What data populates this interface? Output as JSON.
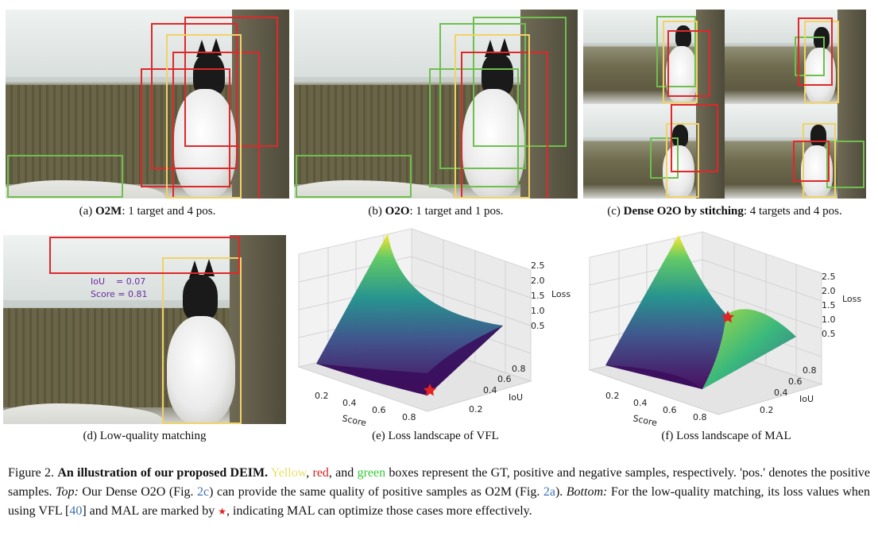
{
  "subfigures": {
    "a": {
      "prefix": "(a) ",
      "bold": "O2M",
      "rest": ": 1 target and 4 pos."
    },
    "b": {
      "prefix": "(b) ",
      "bold": "O2O",
      "rest": ": 1 target and 1 pos."
    },
    "c": {
      "prefix": "(c) ",
      "bold": "Dense O2O by stitching",
      "rest": ": 4 targets and 4 pos."
    },
    "d": {
      "text": "(d) Low-quality matching"
    },
    "e": {
      "text": "(e) Loss landscape of VFL"
    },
    "f": {
      "text": "(f) Loss landscape of MAL"
    }
  },
  "overlay": {
    "iou": "IoU    = 0.07",
    "score": "Score = 0.81"
  },
  "plot": {
    "loss_label": "Loss",
    "iou_label": "IoU",
    "score_label": "Score",
    "loss_ticks": [
      "2.5",
      "2.0",
      "1.5",
      "1.0",
      "0.5"
    ],
    "iou_ticks": [
      "0.8",
      "0.6",
      "0.4",
      "0.2"
    ],
    "score_ticks": [
      "0.2",
      "0.4",
      "0.6",
      "0.8"
    ]
  },
  "caption": {
    "fig": "Figure 2. ",
    "title": "An illustration of our proposed DEIM.",
    "yellow": "Yellow",
    "comma1": ", ",
    "red": "red",
    "and": ", and ",
    "green": "green",
    "s1": " boxes represent the GT, positive and negative samples, respectively. 'pos.' denotes the positive samples. ",
    "top": "Top:",
    "s2": " Our Dense O2O (Fig. ",
    "ref_2c": "2c",
    "s3": ") can provide the same quality of positive samples as O2M (Fig. ",
    "ref_2a": "2a",
    "s4": "). ",
    "bottom": "Bottom:",
    "s5": " For the low-quality matching, its loss values when using VFL [",
    "ref_40": "40",
    "s6": "] and MAL are marked by ",
    "star": "★",
    "s7": ", indicating MAL can optimize those cases more effectively."
  },
  "colors": {
    "gt": "#f1d268",
    "positive": "#e0272a",
    "negative": "#6fbf4e",
    "star": "#e52222"
  }
}
